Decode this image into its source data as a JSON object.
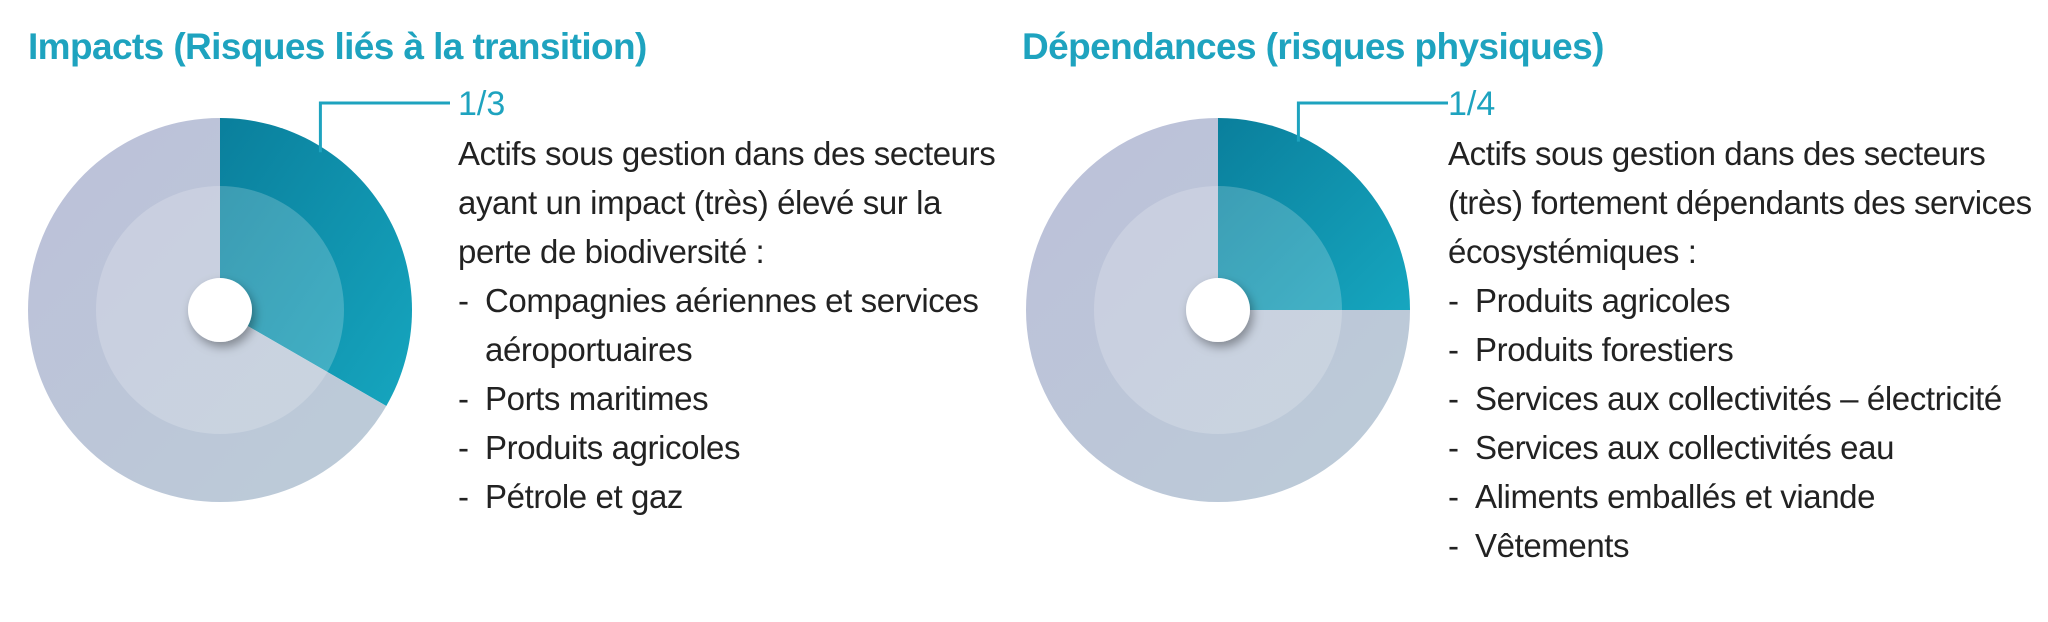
{
  "colors": {
    "accent": "#1ea3bf",
    "highlight_dark": "#0a7f9c",
    "highlight_light": "#16a6bf",
    "rest_outer": "#c0c6d8",
    "rest_inner": "#ccd3e1",
    "text": "#222222"
  },
  "panels": [
    {
      "title": "Impacts (Risques liés à la transition)",
      "fraction_label": "1/3",
      "description": "Actifs sous gestion dans des secteurs ayant un impact (très) élevé sur la perte de biodiversité :",
      "items": [
        "Compagnies aériennes et services aéroportuaires",
        "Ports maritimes",
        "Produits agricoles",
        "Pétrole et gaz"
      ]
    },
    {
      "title": "Dépendances (risques physiques)",
      "fraction_label": "1/4",
      "description": "Actifs sous gestion dans des secteurs (très) fortement dépendants des services écosystémiques :",
      "items": [
        "Produits agricoles",
        "Produits forestiers",
        "Services aux collectivités – électricité",
        "Services aux collectivités eau",
        "Aliments emballés et viande",
        "Vêtements"
      ]
    }
  ],
  "chart_data": [
    {
      "type": "pie",
      "title": "Impacts (Risques liés à la transition)",
      "slices": [
        {
          "label": "1/3",
          "value": 0.3333
        },
        {
          "label": "",
          "value": 0.6667
        }
      ]
    },
    {
      "type": "pie",
      "title": "Dépendances (risques physiques)",
      "slices": [
        {
          "label": "1/4",
          "value": 0.25
        },
        {
          "label": "",
          "value": 0.75
        }
      ]
    }
  ]
}
